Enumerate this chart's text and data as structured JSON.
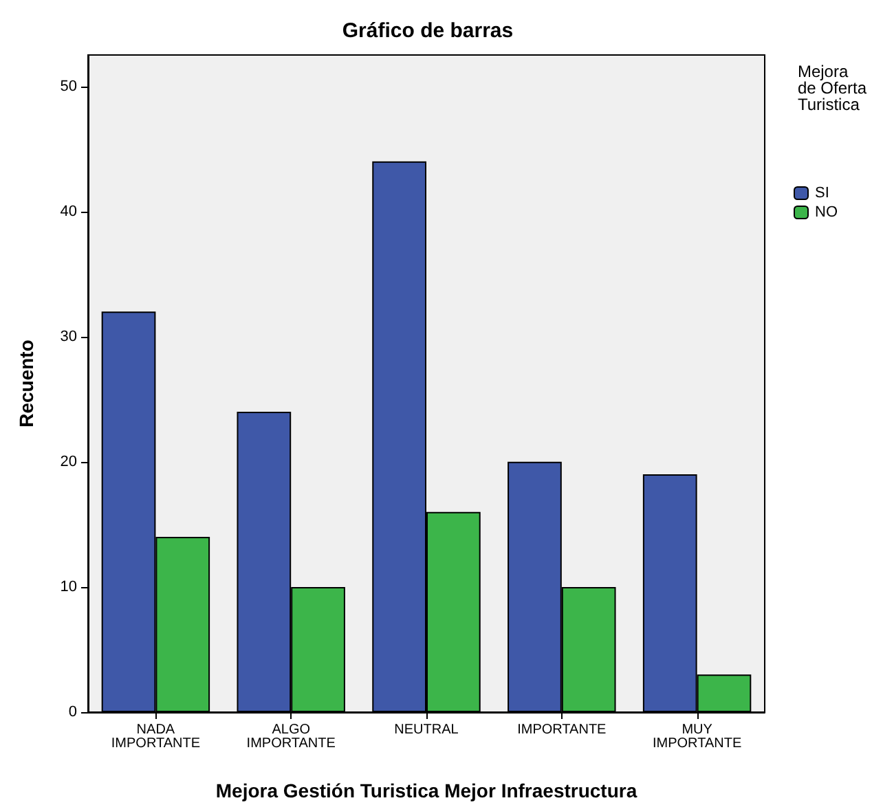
{
  "chart_data": {
    "type": "bar",
    "title": "Gráfico de barras",
    "xlabel": "Mejora Gestión Turistica Mejor Infraestructura",
    "ylabel": "Recuento",
    "legend_title": "Mejora\nde Oferta\nTuristica",
    "categories": [
      "NADA\nIMPORTANTE",
      "ALGO\nIMPORTANTE",
      "NEUTRAL",
      "IMPORTANTE",
      "MUY\nIMPORTANTE"
    ],
    "series": [
      {
        "name": "SI",
        "color": "#3f58a8",
        "values": [
          32,
          24,
          44,
          20,
          19
        ]
      },
      {
        "name": "NO",
        "color": "#3cb54a",
        "values": [
          14,
          10,
          16,
          10,
          3
        ]
      }
    ],
    "ylim": [
      0,
      52.5
    ],
    "yticks": [
      0,
      10,
      20,
      30,
      40,
      50
    ],
    "grid": false,
    "legend": "top right"
  }
}
